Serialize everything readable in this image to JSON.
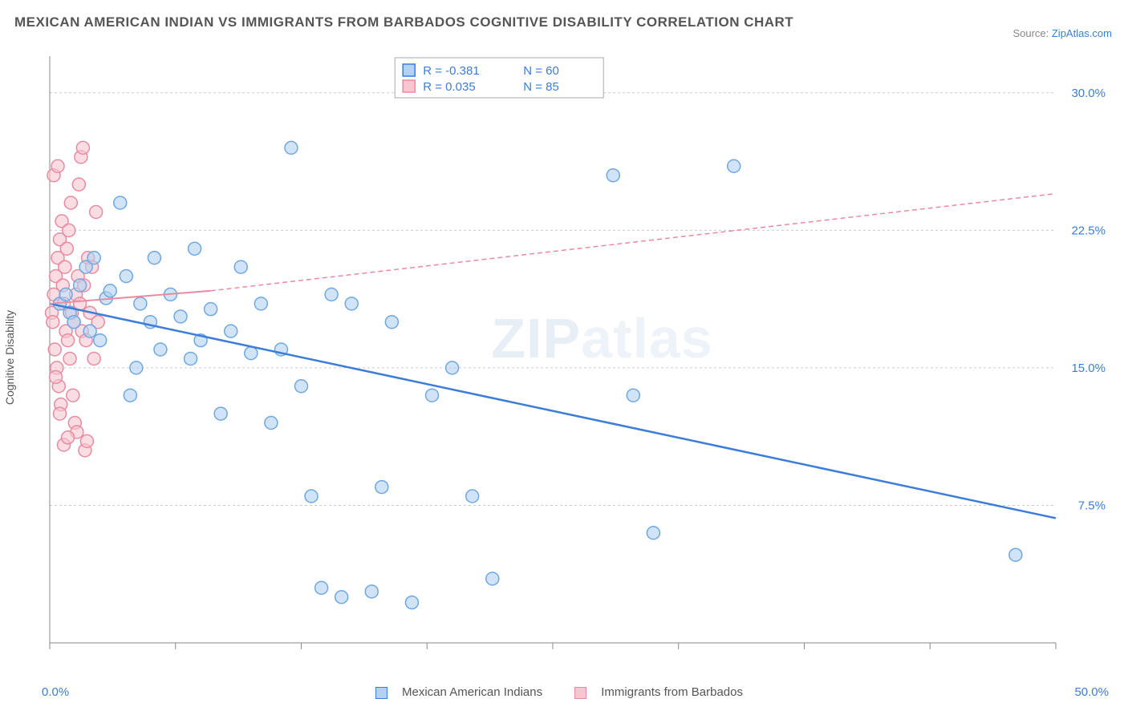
{
  "title": "MEXICAN AMERICAN INDIAN VS IMMIGRANTS FROM BARBADOS COGNITIVE DISABILITY CORRELATION CHART",
  "source_label": "Source: ",
  "source_link": "ZipAtlas.com",
  "y_axis_label": "Cognitive Disability",
  "watermark": "ZIPatlas",
  "chart": {
    "type": "scatter",
    "xlim": [
      0,
      50
    ],
    "ylim": [
      0,
      32
    ],
    "x_min_label": "0.0%",
    "x_max_label": "50.0%",
    "y_ticks": [
      7.5,
      15.0,
      22.5,
      30.0
    ],
    "y_tick_labels": [
      "7.5%",
      "15.0%",
      "22.5%",
      "30.0%"
    ],
    "x_tick_positions": [
      0,
      6.25,
      12.5,
      18.75,
      25,
      31.25,
      37.5,
      43.75,
      50
    ],
    "grid_color": "#cccccc",
    "background_color": "#ffffff",
    "series": [
      {
        "name": "Mexican American Indians",
        "color_fill": "#b3d1f0",
        "color_stroke": "#6fa8e0",
        "marker_radius": 8,
        "r_value": "-0.381",
        "n_value": "60",
        "trend": {
          "x1": 0,
          "y1": 18.5,
          "x2": 50,
          "y2": 6.8,
          "color": "#3b7dd8",
          "width": 2.5
        },
        "points": [
          [
            0.5,
            18.5
          ],
          [
            0.8,
            19
          ],
          [
            1,
            18
          ],
          [
            1.2,
            17.5
          ],
          [
            1.5,
            19.5
          ],
          [
            1.8,
            20.5
          ],
          [
            2,
            17
          ],
          [
            2.2,
            21
          ],
          [
            2.5,
            16.5
          ],
          [
            2.8,
            18.8
          ],
          [
            3,
            19.2
          ],
          [
            3.5,
            24
          ],
          [
            3.8,
            20
          ],
          [
            4,
            13.5
          ],
          [
            4.3,
            15
          ],
          [
            4.5,
            18.5
          ],
          [
            5,
            17.5
          ],
          [
            5.2,
            21
          ],
          [
            5.5,
            16
          ],
          [
            6,
            19
          ],
          [
            6.5,
            17.8
          ],
          [
            7,
            15.5
          ],
          [
            7.2,
            21.5
          ],
          [
            7.5,
            16.5
          ],
          [
            8,
            18.2
          ],
          [
            8.5,
            12.5
          ],
          [
            9,
            17
          ],
          [
            9.5,
            20.5
          ],
          [
            10,
            15.8
          ],
          [
            10.5,
            18.5
          ],
          [
            11,
            12
          ],
          [
            11.5,
            16
          ],
          [
            12,
            27
          ],
          [
            12.5,
            14
          ],
          [
            13,
            8
          ],
          [
            13.5,
            3
          ],
          [
            14,
            19
          ],
          [
            14.5,
            2.5
          ],
          [
            15,
            18.5
          ],
          [
            16,
            2.8
          ],
          [
            16.5,
            8.5
          ],
          [
            17,
            17.5
          ],
          [
            18,
            2.2
          ],
          [
            19,
            13.5
          ],
          [
            20,
            15
          ],
          [
            21,
            8
          ],
          [
            22,
            3.5
          ],
          [
            28,
            25.5
          ],
          [
            29,
            13.5
          ],
          [
            30,
            6
          ],
          [
            34,
            26
          ],
          [
            48,
            4.8
          ]
        ]
      },
      {
        "name": "Immigrants from Barbados",
        "color_fill": "#f7c6d0",
        "color_stroke": "#e88ba0",
        "marker_radius": 8,
        "r_value": "0.035",
        "n_value": "85",
        "trend_solid": {
          "x1": 0,
          "y1": 18.5,
          "x2": 8,
          "y2": 19.2
        },
        "trend_dash": {
          "x1": 8,
          "y1": 19.2,
          "x2": 50,
          "y2": 24.5
        },
        "points": [
          [
            0.1,
            18
          ],
          [
            0.2,
            19
          ],
          [
            0.15,
            17.5
          ],
          [
            0.3,
            20
          ],
          [
            0.25,
            16
          ],
          [
            0.4,
            21
          ],
          [
            0.35,
            15
          ],
          [
            0.5,
            22
          ],
          [
            0.45,
            14
          ],
          [
            0.6,
            23
          ],
          [
            0.55,
            13
          ],
          [
            0.7,
            18.5
          ],
          [
            0.65,
            19.5
          ],
          [
            0.8,
            17
          ],
          [
            0.75,
            20.5
          ],
          [
            0.9,
            16.5
          ],
          [
            0.85,
            21.5
          ],
          [
            1,
            15.5
          ],
          [
            0.95,
            22.5
          ],
          [
            1.1,
            18
          ],
          [
            1.05,
            24
          ],
          [
            1.2,
            17.5
          ],
          [
            1.15,
            13.5
          ],
          [
            1.3,
            19
          ],
          [
            1.25,
            12
          ],
          [
            1.4,
            20
          ],
          [
            1.35,
            11.5
          ],
          [
            1.5,
            18.5
          ],
          [
            1.45,
            25
          ],
          [
            1.6,
            17
          ],
          [
            1.55,
            26.5
          ],
          [
            1.7,
            19.5
          ],
          [
            1.65,
            27
          ],
          [
            1.8,
            16.5
          ],
          [
            1.75,
            10.5
          ],
          [
            1.9,
            21
          ],
          [
            1.85,
            11
          ],
          [
            2,
            18
          ],
          [
            2.1,
            20.5
          ],
          [
            2.2,
            15.5
          ],
          [
            2.3,
            23.5
          ],
          [
            2.4,
            17.5
          ],
          [
            0.3,
            14.5
          ],
          [
            0.5,
            12.5
          ],
          [
            0.7,
            10.8
          ],
          [
            0.9,
            11.2
          ],
          [
            0.2,
            25.5
          ],
          [
            0.4,
            26
          ]
        ]
      }
    ]
  },
  "legend_top": {
    "r_label": "R =",
    "n_label": "N ="
  },
  "legend_bottom": {
    "series1": "Mexican American Indians",
    "series2": "Immigrants from Barbados"
  }
}
